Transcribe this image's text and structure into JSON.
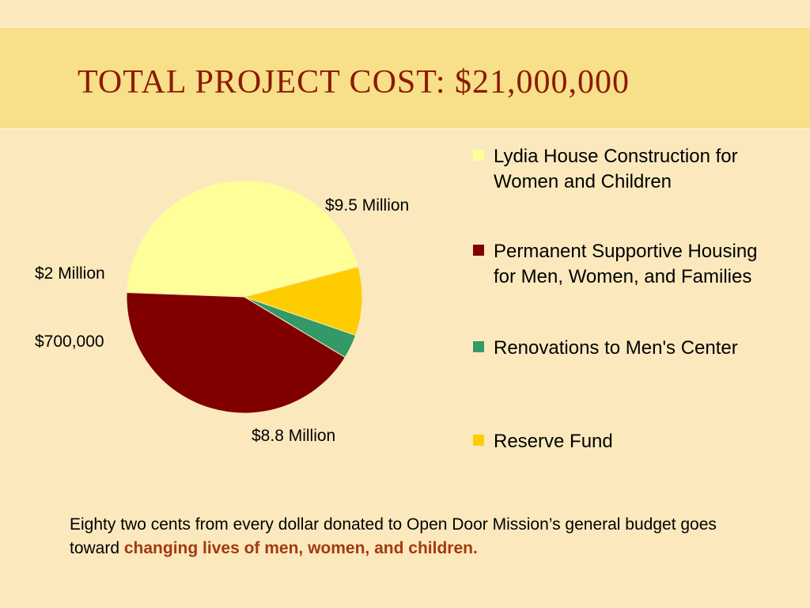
{
  "title": "TOTAL PROJECT COST:  $21,000,000",
  "chart_data": {
    "type": "pie",
    "title": "TOTAL PROJECT COST:  $21,000,000",
    "slices": [
      {
        "name": "Lydia House Construction for Women and Children",
        "value": 9.5,
        "label": "$9.5 Million",
        "color": "#ffff99"
      },
      {
        "name": "Permanent Supportive Housing for Men, Women, and Families",
        "value": 8.8,
        "label": "$8.8 Million",
        "color": "#800000"
      },
      {
        "name": "Renovations to Men's Center",
        "value": 0.7,
        "label": "$700,000",
        "color": "#339966"
      },
      {
        "name": "Reserve Fund",
        "value": 2.0,
        "label": "$2 Million",
        "color": "#ffcc00"
      }
    ],
    "legend_placement": "right"
  },
  "footer": {
    "text": "Eighty two cents from every dollar donated to Open Door Mission’s general budget goes toward ",
    "highlight": "changing lives of men, women, and children."
  }
}
